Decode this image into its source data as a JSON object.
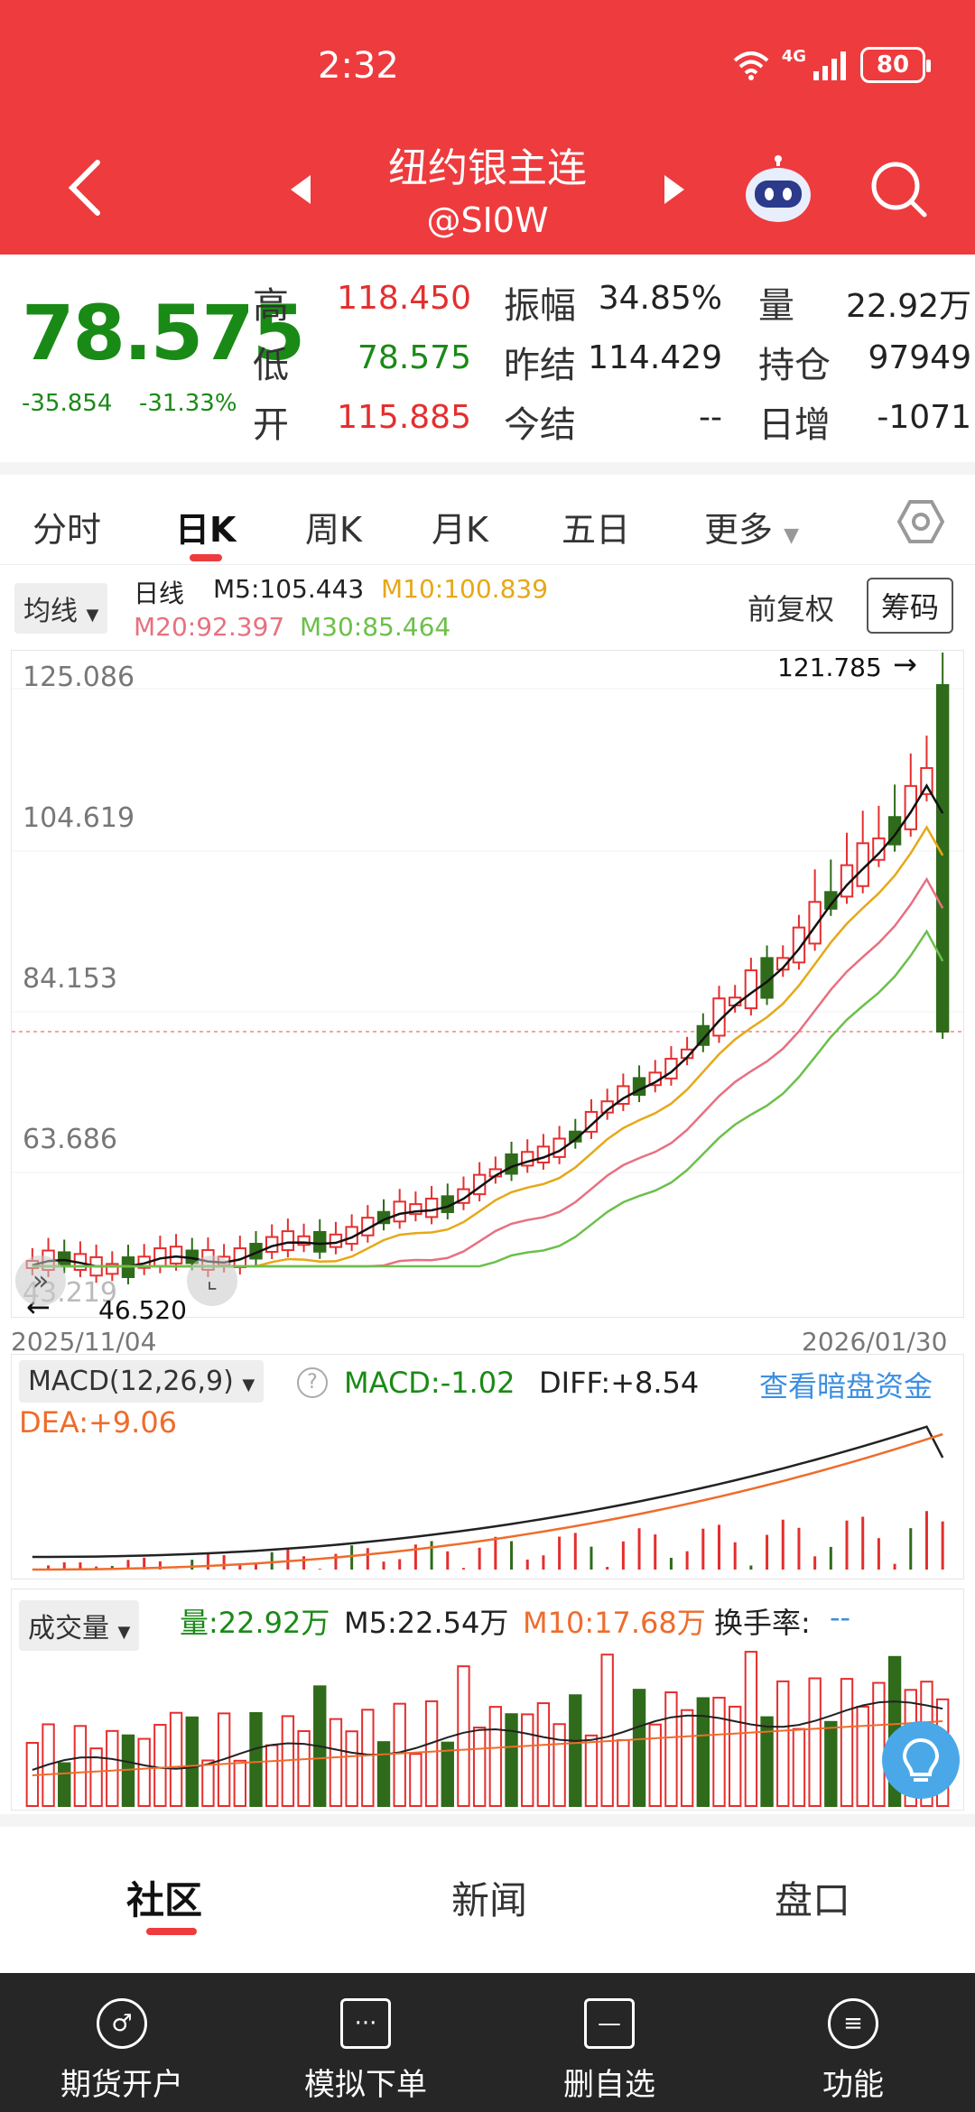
{
  "status": {
    "time": "2:32",
    "network": "4G",
    "battery": "80"
  },
  "header": {
    "title": "纽约银主连",
    "subtitle": "@SI0W"
  },
  "quote": {
    "price": "78.575",
    "change": "-35.854",
    "change_pct": "-31.33%",
    "high_label": "高",
    "high": "118.450",
    "low_label": "低",
    "low": "78.575",
    "open_label": "开",
    "open": "115.885",
    "amplitude_label": "振幅",
    "amplitude": "34.85%",
    "prev_settle_label": "昨结",
    "prev_settle": "114.429",
    "today_settle_label": "今结",
    "today_settle": "--",
    "volume_label": "量",
    "volume": "22.92万",
    "oi_label": "持仓",
    "oi": "97949",
    "daily_inc_label": "日增",
    "daily_inc": "-1071"
  },
  "tabs": [
    "分时",
    "日K",
    "周K",
    "月K",
    "五日",
    "更多"
  ],
  "ma_bar": {
    "chip": "均线",
    "period": "日线",
    "m5": "M5:105.443",
    "m10": "M10:100.839",
    "m20": "M20:92.397",
    "m30": "M30:85.464",
    "adjust": "前复权",
    "chips_btn": "筹码"
  },
  "kchart": {
    "y_labels": [
      "125.086",
      "104.619",
      "84.153",
      "63.686"
    ],
    "bottom_partial": "43.219",
    "max_label": "121.785",
    "min_label": "46.520",
    "date_start": "2025/11/04",
    "date_end": "2026/01/30"
  },
  "macd": {
    "selector": "MACD(12,26,9)",
    "macd": "MACD:-1.02",
    "diff": "DIFF:+8.54",
    "dea": "DEA:+9.06",
    "link": "查看暗盘资金"
  },
  "volume": {
    "selector": "成交量",
    "vol": "量:22.92万",
    "m5": "M5:22.54万",
    "m10": "M10:17.68万",
    "turnover": "换手率:",
    "turnover_val": "--"
  },
  "community_tabs": [
    "社区",
    "新闻",
    "盘口"
  ],
  "bottom_nav": [
    {
      "label": "期货开户",
      "icon": "account-icon"
    },
    {
      "label": "模拟下单",
      "icon": "document-icon"
    },
    {
      "label": "删自选",
      "icon": "minus-icon"
    },
    {
      "label": "功能",
      "icon": "menu-icon"
    }
  ],
  "colors": {
    "up": "#e52e2e",
    "down": "#2f6b1a",
    "brand": "#ee3b3e",
    "m5": "#111111",
    "m10": "#e6a817",
    "m20": "#e8707f",
    "m30": "#6cc04a"
  }
}
